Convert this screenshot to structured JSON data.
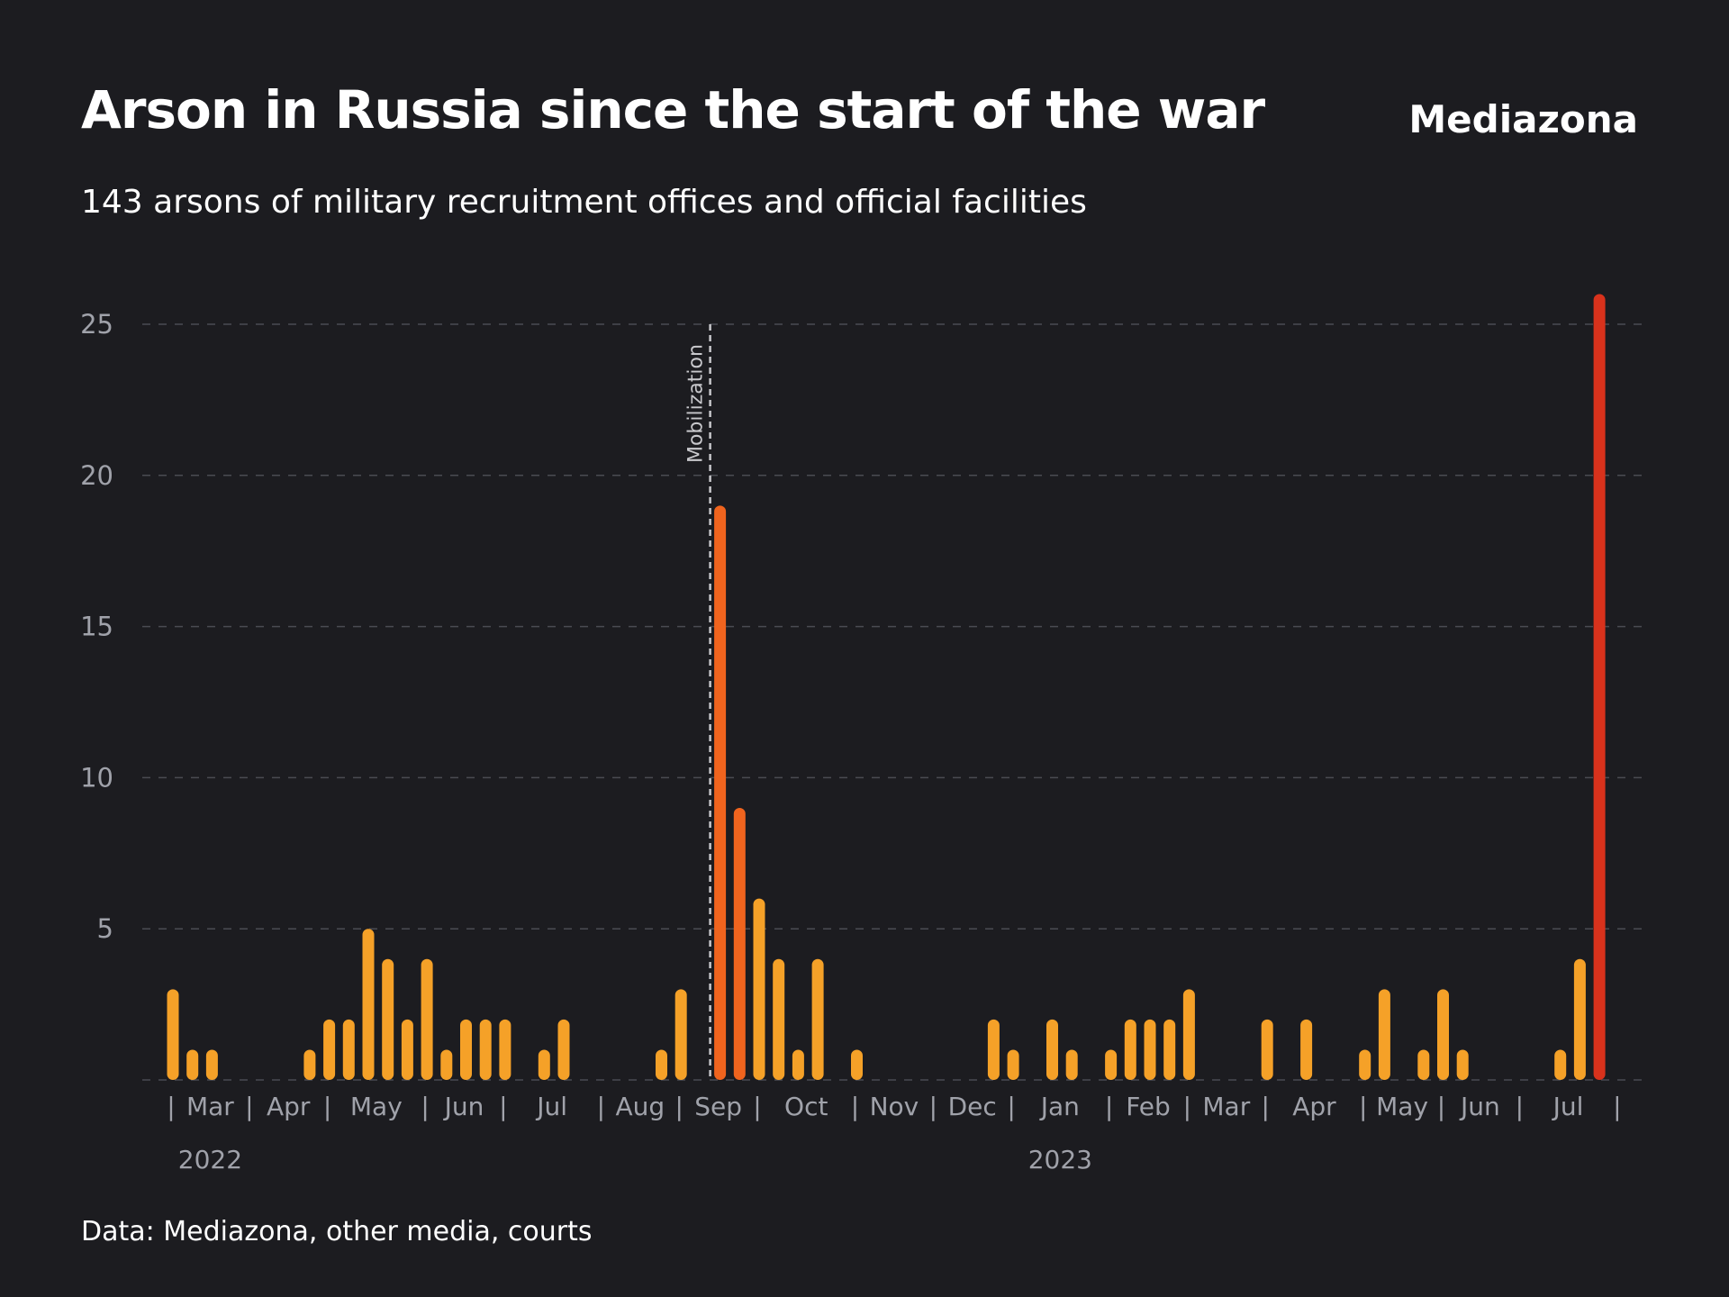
{
  "header": {
    "title": "Arson in Russia since the start of the war",
    "brand": "Mediazona",
    "subtitle": "143 arsons of military recruitment offices and official facilities"
  },
  "footer": {
    "source": "Data: Mediazona, other media, courts"
  },
  "colors": {
    "background": "#1c1c20",
    "bar_regular": "#f5a128",
    "bar_post_mobilization": "#f0641e",
    "bar_latest": "#d8321c",
    "grid": "#4a4b52",
    "axis_text": "#a0a2aa"
  },
  "chart_data": {
    "type": "bar",
    "title": "Arson in Russia since the start of the war",
    "subtitle": "143 arsons of military recruitment offices and official facilities",
    "xlabel": "",
    "ylabel": "",
    "ylim": [
      0,
      25
    ],
    "yticks": [
      5,
      10,
      15,
      20,
      25
    ],
    "grid": true,
    "x_unit": "week",
    "month_labels": [
      "Mar",
      "Apr",
      "May",
      "Jun",
      "Jul",
      "Aug",
      "Sep",
      "Oct",
      "Nov",
      "Dec",
      "Jan",
      "Feb",
      "Mar",
      "Apr",
      "May",
      "Jun",
      "Jul"
    ],
    "year_labels": [
      {
        "label": "2022",
        "under_month": 0
      },
      {
        "label": "2023",
        "under_month": 10
      }
    ],
    "month_start_week": [
      0,
      4,
      8,
      13,
      17,
      22,
      26,
      30,
      35,
      39,
      43,
      48,
      52,
      56,
      61,
      65,
      69,
      74
    ],
    "series": [
      {
        "values": [
          3,
          1,
          1,
          0,
          0,
          0,
          0,
          1,
          2,
          2,
          5,
          4,
          2,
          4,
          1,
          2,
          2,
          2,
          0,
          1,
          2,
          0,
          0,
          0,
          0,
          1,
          3,
          0,
          19,
          9,
          6,
          4,
          1,
          4,
          0,
          1,
          0,
          0,
          0,
          0,
          0,
          0,
          2,
          1,
          0,
          2,
          1,
          0,
          1,
          2,
          2,
          2,
          3,
          0,
          0,
          0,
          2,
          0,
          2,
          0,
          0,
          1,
          3,
          0,
          1,
          3,
          1,
          0,
          0,
          0,
          0,
          1,
          4,
          26
        ]
      }
    ],
    "annotations": [
      {
        "label": "Mobilization",
        "at_week": 28,
        "style": "dashed-vertical-line"
      }
    ],
    "bar_color_rules": {
      "post_mobilization_weeks": [
        28,
        29
      ],
      "latest_week": 73
    }
  }
}
